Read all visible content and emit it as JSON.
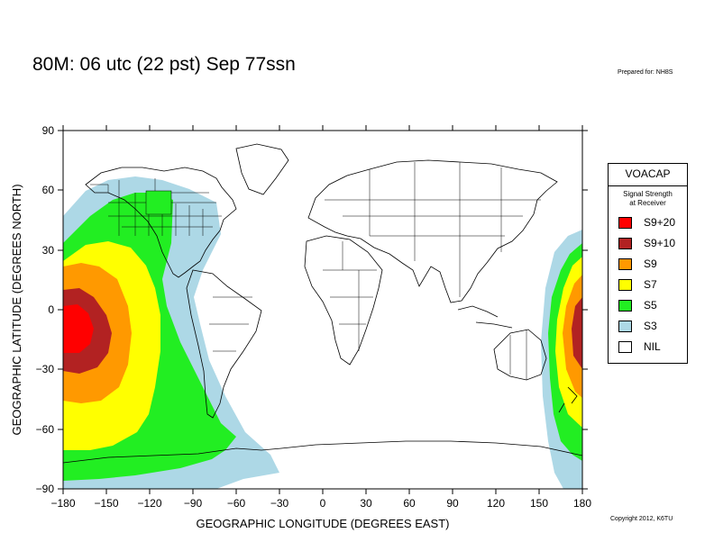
{
  "header": {
    "title": "80M:  06 utc (22 pst) Sep 77ssn",
    "prepared_for": "Prepared for: NH8S"
  },
  "footer": {
    "copyright": "Copyright 2012, K6TU"
  },
  "map": {
    "xlabel": "GEOGRAPHIC LONGITUDE (DEGREES EAST)",
    "ylabel": "GEOGRAPHIC LATITUDE (DEGREES NORTH)",
    "xticks": [
      "−180",
      "−150",
      "−120",
      "−90",
      "−60",
      "−30",
      "0",
      "30",
      "60",
      "90",
      "120",
      "150",
      "180"
    ],
    "yticks": [
      "90",
      "60",
      "30",
      "0",
      "−30",
      "−60",
      "−90"
    ],
    "xlim": [
      -180,
      180
    ],
    "ylim": [
      -90,
      90
    ],
    "projection": "equirectangular",
    "basemap": "world country and state boundaries (outline)"
  },
  "legend": {
    "title": "VOACAP",
    "subtitle_line1": "Signal Strength",
    "subtitle_line2": "at Receiver",
    "items": [
      {
        "label": "S9+20",
        "color": "#ff0000"
      },
      {
        "label": "S9+10",
        "color": "#b22222"
      },
      {
        "label": "S9",
        "color": "#ff9900"
      },
      {
        "label": "S7",
        "color": "#ffff00"
      },
      {
        "label": "S5",
        "color": "#22ee22"
      },
      {
        "label": "S3",
        "color": "#add8e6"
      },
      {
        "label": "NIL",
        "color": "#ffffff"
      }
    ]
  }
}
